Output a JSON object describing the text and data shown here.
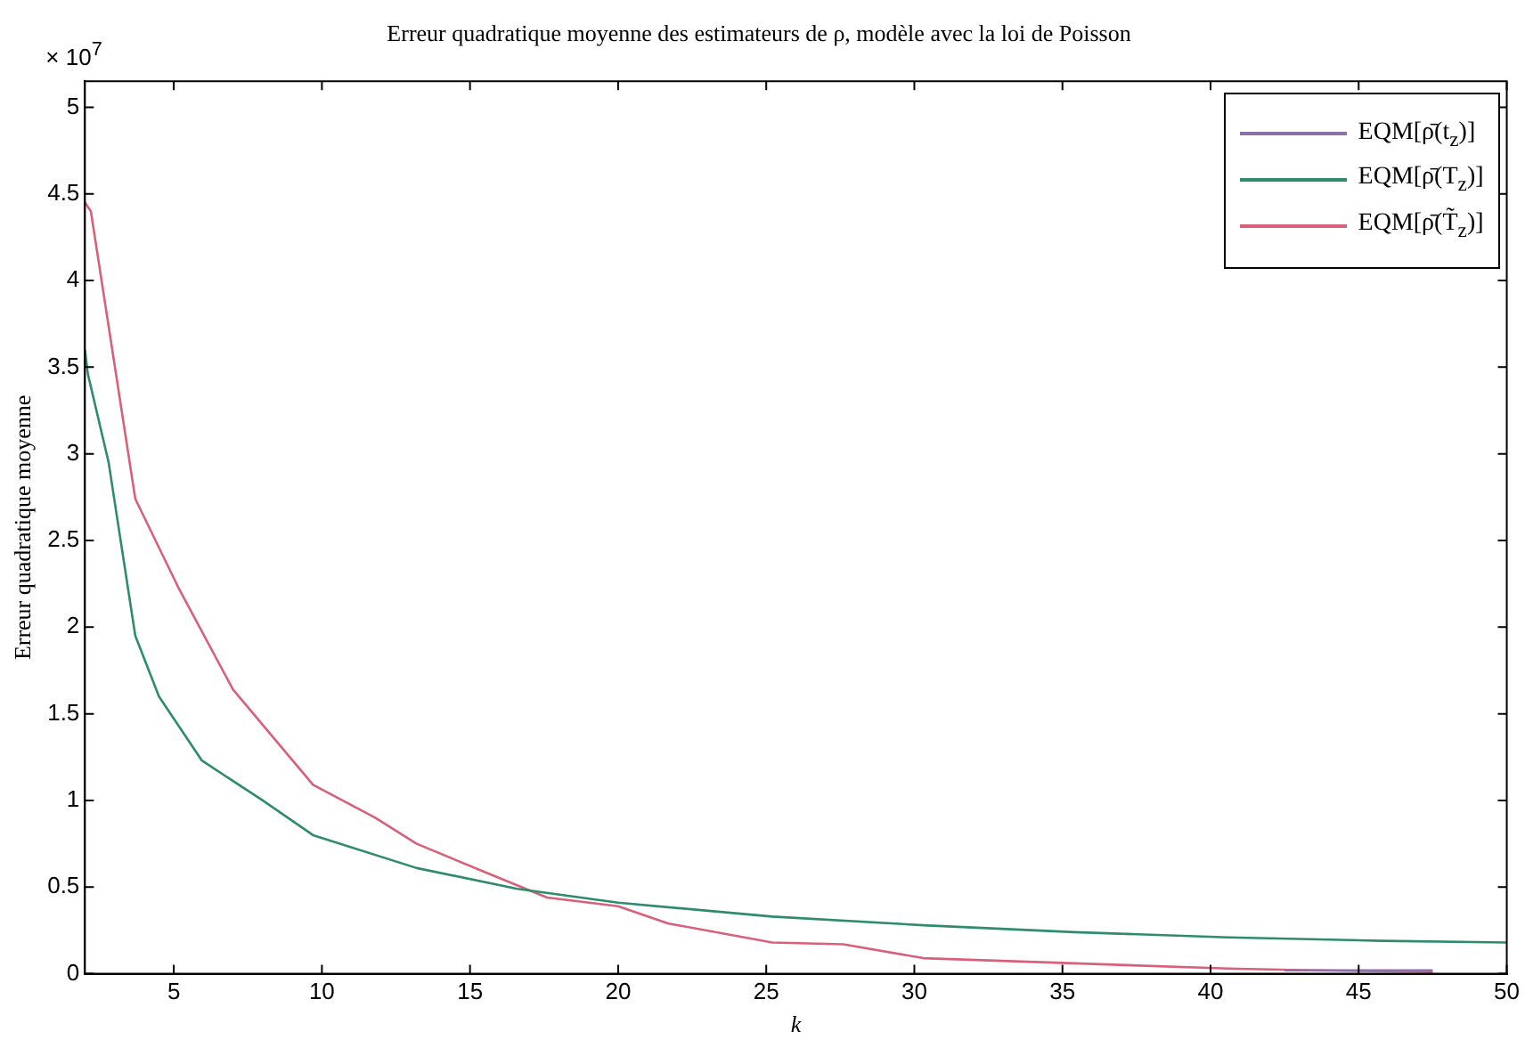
{
  "chart_data": {
    "type": "line",
    "title": "Erreur quadratique moyenne des estimateurs de ρ, modèle avec la loi de Poisson",
    "xlabel": "k",
    "ylabel": "Erreur quadratique moyenne",
    "annotations": [
      "× 10$^{7}$"
    ],
    "xlim": [
      2,
      50
    ],
    "xticks": [
      5,
      10,
      15,
      20,
      25,
      30,
      35,
      40,
      45,
      50
    ],
    "ylim": [
      0,
      5.15
    ],
    "yticks": [
      0,
      0.5,
      1,
      1.5,
      2,
      2.5,
      3,
      3.5,
      4,
      4.5,
      5
    ],
    "grid": false,
    "legend": "top right",
    "marker": "none",
    "line_style": "solid",
    "series": [
      {
        "name": "EQM[ρ̄(t$_{z}$)]",
        "color": "#8e6fa8",
        "x": [
          42.5,
          45,
          47.5
        ],
        "values": [
          0.02,
          0.02,
          0.02
        ]
      },
      {
        "name": "EQM[ρ̄(T$_{z}$)]",
        "color": "#2e8b6e",
        "x": [
          2,
          2.1,
          2.8,
          3.7,
          4.5,
          5.95,
          8,
          9.7,
          13.2,
          16.6,
          20,
          25.2,
          30.3,
          35.4,
          40.6,
          45.8,
          50
        ],
        "values": [
          3.6,
          3.46,
          2.95,
          1.95,
          1.6,
          1.23,
          1.0,
          0.8,
          0.61,
          0.49,
          0.41,
          0.33,
          0.28,
          0.24,
          0.21,
          0.19,
          0.18
        ]
      },
      {
        "name": "EQM[ρ̄(T̃$_{z}$)]",
        "color": "#d9607a",
        "x": [
          2,
          2.2,
          3.7,
          5.15,
          7,
          9.7,
          11.8,
          13.2,
          15.6,
          17.6,
          20,
          21.7,
          25.2,
          27.6,
          30.3,
          35.4,
          40.6,
          43.4,
          47.5
        ],
        "values": [
          4.45,
          4.4,
          2.74,
          2.23,
          1.64,
          1.09,
          0.9,
          0.75,
          0.58,
          0.44,
          0.39,
          0.29,
          0.18,
          0.17,
          0.09,
          0.06,
          0.03,
          0.02,
          0.01
        ]
      }
    ]
  }
}
